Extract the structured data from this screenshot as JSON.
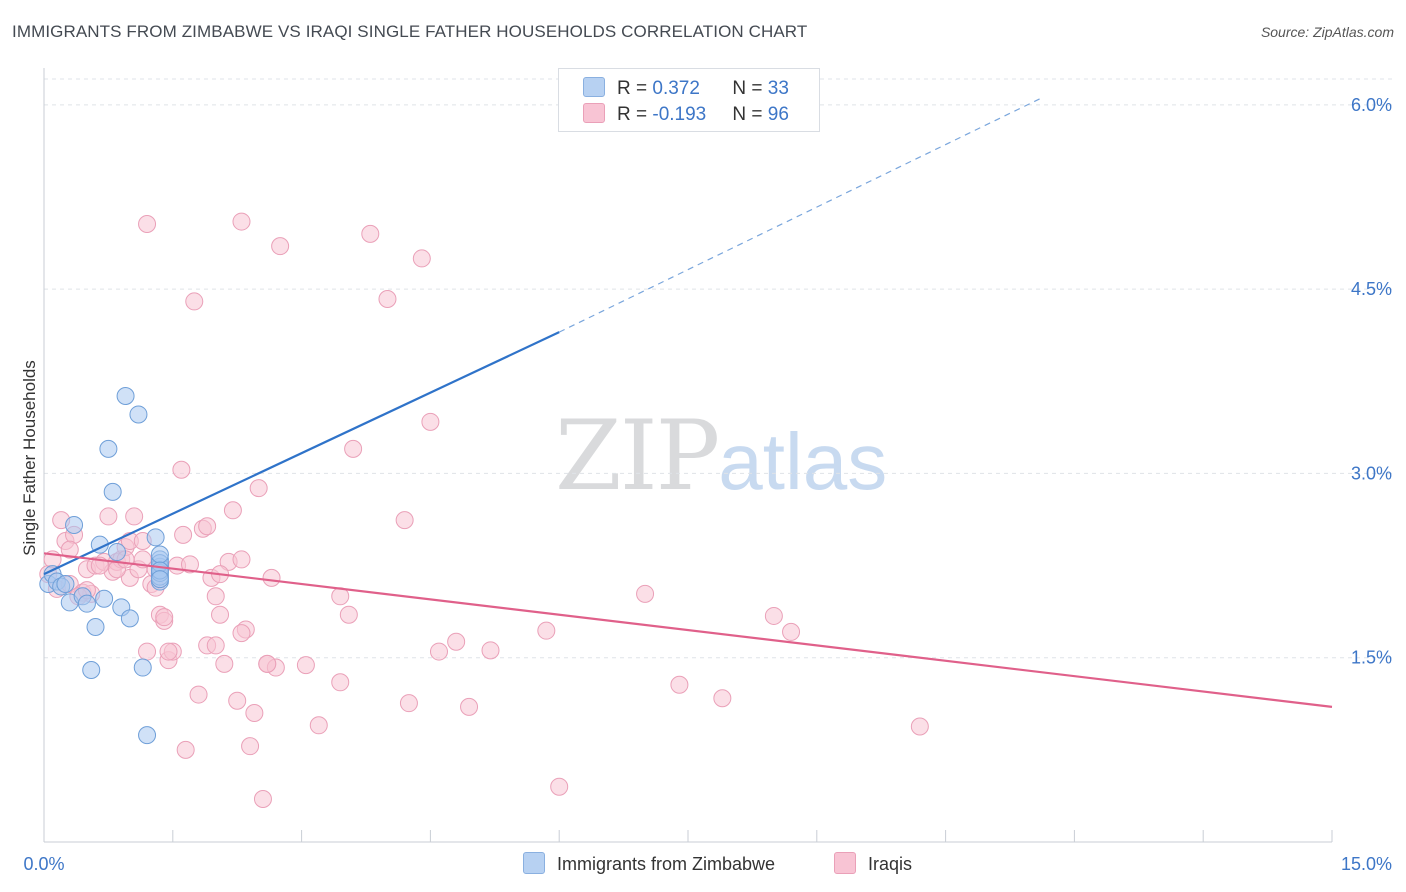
{
  "header": {
    "title": "IMMIGRANTS FROM ZIMBABWE VS IRAQI SINGLE FATHER HOUSEHOLDS CORRELATION CHART",
    "source": "Source: ZipAtlas.com"
  },
  "watermark": {
    "zip": "ZIP",
    "atlas": "atlas"
  },
  "legend": {
    "rows": [
      {
        "r_label": "R = ",
        "r_value": "0.372",
        "n_label": "N = ",
        "n_value": "33",
        "color": "#b7d1f2",
        "border": "#8ab0e0"
      },
      {
        "r_label": "R = ",
        "r_value": "-0.193",
        "n_label": "N = ",
        "n_value": "96",
        "color": "#f8c4d4",
        "border": "#eaa0b8"
      }
    ]
  },
  "chart_data": {
    "type": "scatter",
    "xlabel": "",
    "ylabel": "Single Father Households",
    "xlim": [
      0,
      15
    ],
    "ylim": [
      0,
      6.3
    ],
    "x_tick_labels": [
      "0.0%",
      "15.0%"
    ],
    "y_ticks": [
      1.5,
      3.0,
      4.5,
      6.0
    ],
    "y_tick_labels": [
      "1.5%",
      "3.0%",
      "4.5%",
      "6.0%"
    ],
    "grid": "horizontal-dashed",
    "series": [
      {
        "name": "Immigrants from Zimbabwe",
        "color": "#a9c9f0",
        "stroke": "#6f9fd8",
        "line_color": "#2f73c9",
        "trend": {
          "x0": 0.0,
          "y0": 2.18,
          "x1": 6.0,
          "y1": 4.15,
          "dash_to_x": 11.6,
          "dash_to_y": 6.05
        },
        "points": [
          [
            0.05,
            2.1
          ],
          [
            0.1,
            2.18
          ],
          [
            0.15,
            2.12
          ],
          [
            0.2,
            2.08
          ],
          [
            0.25,
            2.1
          ],
          [
            0.3,
            1.95
          ],
          [
            0.35,
            2.58
          ],
          [
            0.45,
            2.0
          ],
          [
            0.5,
            1.94
          ],
          [
            0.55,
            1.4
          ],
          [
            0.6,
            1.75
          ],
          [
            0.65,
            2.42
          ],
          [
            0.7,
            1.98
          ],
          [
            0.75,
            3.2
          ],
          [
            0.8,
            2.85
          ],
          [
            0.85,
            2.36
          ],
          [
            0.9,
            1.91
          ],
          [
            0.95,
            3.63
          ],
          [
            1.0,
            1.82
          ],
          [
            1.1,
            3.48
          ],
          [
            1.15,
            1.42
          ],
          [
            1.2,
            0.87
          ],
          [
            1.3,
            2.48
          ],
          [
            1.35,
            2.22
          ],
          [
            1.35,
            2.3
          ],
          [
            1.35,
            2.24
          ],
          [
            1.35,
            2.12
          ],
          [
            1.35,
            2.16
          ],
          [
            1.35,
            2.19
          ],
          [
            1.35,
            2.27
          ],
          [
            1.35,
            2.34
          ],
          [
            1.35,
            2.21
          ],
          [
            1.35,
            2.14
          ]
        ]
      },
      {
        "name": "Iraqis",
        "color": "#f8c4d4",
        "stroke": "#eaa0b8",
        "line_color": "#e0608a",
        "trend": {
          "x0": 0.0,
          "y0": 2.35,
          "x1": 15.0,
          "y1": 1.1
        },
        "points": [
          [
            0.05,
            2.18
          ],
          [
            0.1,
            2.3
          ],
          [
            0.15,
            2.06
          ],
          [
            0.2,
            2.62
          ],
          [
            0.25,
            2.45
          ],
          [
            0.3,
            2.1
          ],
          [
            0.35,
            2.5
          ],
          [
            0.45,
            2.03
          ],
          [
            0.5,
            2.22
          ],
          [
            0.55,
            2.02
          ],
          [
            0.6,
            2.25
          ],
          [
            0.7,
            2.28
          ],
          [
            0.75,
            2.65
          ],
          [
            0.8,
            2.2
          ],
          [
            0.85,
            2.28
          ],
          [
            0.9,
            2.3
          ],
          [
            0.95,
            2.4
          ],
          [
            1.0,
            2.15
          ],
          [
            1.05,
            2.65
          ],
          [
            1.1,
            2.22
          ],
          [
            1.15,
            2.3
          ],
          [
            1.2,
            1.55
          ],
          [
            1.25,
            2.1
          ],
          [
            1.3,
            2.22
          ],
          [
            1.35,
            1.85
          ],
          [
            1.4,
            1.8
          ],
          [
            1.45,
            1.48
          ],
          [
            1.5,
            1.55
          ],
          [
            1.55,
            2.25
          ],
          [
            1.6,
            3.03
          ],
          [
            1.62,
            2.5
          ],
          [
            1.65,
            0.75
          ],
          [
            1.7,
            2.26
          ],
          [
            1.75,
            4.4
          ],
          [
            1.8,
            1.2
          ],
          [
            1.85,
            2.55
          ],
          [
            1.9,
            1.6
          ],
          [
            1.95,
            2.15
          ],
          [
            2.0,
            2.0
          ],
          [
            2.05,
            1.85
          ],
          [
            2.1,
            1.45
          ],
          [
            2.15,
            2.28
          ],
          [
            2.2,
            2.7
          ],
          [
            2.25,
            1.15
          ],
          [
            2.3,
            2.3
          ],
          [
            2.35,
            1.73
          ],
          [
            2.4,
            0.78
          ],
          [
            2.45,
            1.05
          ],
          [
            2.5,
            2.88
          ],
          [
            2.55,
            0.35
          ],
          [
            2.6,
            1.45
          ],
          [
            2.65,
            2.15
          ],
          [
            2.7,
            1.42
          ],
          [
            2.75,
            4.85
          ],
          [
            3.05,
            1.44
          ],
          [
            3.2,
            0.95
          ],
          [
            3.45,
            1.3
          ],
          [
            3.45,
            2.0
          ],
          [
            3.55,
            1.85
          ],
          [
            3.6,
            3.2
          ],
          [
            3.8,
            4.95
          ],
          [
            4.0,
            4.42
          ],
          [
            4.2,
            2.62
          ],
          [
            4.25,
            1.13
          ],
          [
            4.4,
            4.75
          ],
          [
            4.5,
            3.42
          ],
          [
            4.6,
            1.55
          ],
          [
            4.8,
            1.63
          ],
          [
            4.95,
            1.1
          ],
          [
            5.2,
            1.56
          ],
          [
            5.85,
            1.72
          ],
          [
            6.0,
            0.45
          ],
          [
            7.0,
            2.02
          ],
          [
            7.4,
            1.28
          ],
          [
            7.9,
            1.17
          ],
          [
            8.5,
            1.84
          ],
          [
            8.7,
            1.71
          ],
          [
            10.2,
            0.94
          ],
          [
            1.2,
            5.03
          ],
          [
            2.3,
            5.05
          ],
          [
            0.4,
            2.0
          ],
          [
            0.65,
            2.25
          ],
          [
            0.85,
            2.22
          ],
          [
            1.0,
            2.45
          ],
          [
            1.15,
            2.45
          ],
          [
            1.4,
            1.83
          ],
          [
            1.9,
            2.57
          ],
          [
            2.05,
            2.18
          ],
          [
            2.3,
            1.7
          ],
          [
            0.3,
            2.38
          ],
          [
            0.5,
            2.05
          ],
          [
            0.95,
            2.3
          ],
          [
            1.3,
            2.07
          ],
          [
            1.45,
            1.55
          ],
          [
            2.0,
            1.6
          ],
          [
            2.6,
            1.45
          ]
        ]
      }
    ]
  }
}
